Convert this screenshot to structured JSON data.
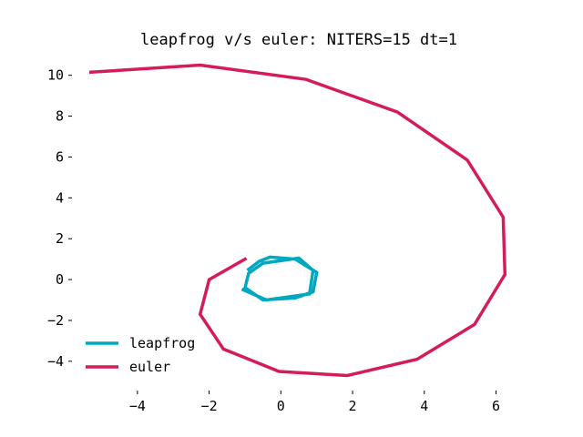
{
  "chart_data": {
    "type": "line",
    "title": "leapfrog v/s euler: NITERS=15 dt=1",
    "xlabel": "",
    "ylabel": "",
    "xlim": [
      -5.8,
      6.8
    ],
    "ylim": [
      -5.3,
      11.1
    ],
    "xticks": [
      -4,
      -2,
      0,
      2,
      4,
      6
    ],
    "yticks": [
      -4,
      -2,
      0,
      2,
      4,
      6,
      8,
      10
    ],
    "xtick_labels": [
      "−4",
      "−2",
      "0",
      "2",
      "4",
      "6"
    ],
    "ytick_labels": [
      "−4",
      "−2",
      "0",
      "2",
      "4",
      "6",
      "8",
      "10"
    ],
    "grid": false,
    "legend_position": "lower-left",
    "series": [
      {
        "name": "leapfrog",
        "color": "#00a8c0",
        "points": [
          [
            -0.9,
            0.5
          ],
          [
            -0.6,
            0.9
          ],
          [
            -0.3,
            1.1
          ],
          [
            0.4,
            1.0
          ],
          [
            1.0,
            0.35
          ],
          [
            0.9,
            -0.6
          ],
          [
            0.4,
            -0.9
          ],
          [
            -0.5,
            -1.0
          ],
          [
            -1.0,
            -0.4
          ],
          [
            -0.9,
            0.3
          ],
          [
            -0.5,
            0.8
          ],
          [
            0.5,
            1.05
          ],
          [
            0.9,
            0.45
          ],
          [
            0.8,
            -0.7
          ],
          [
            -0.4,
            -1.0
          ],
          [
            -1.05,
            -0.5
          ]
        ]
      },
      {
        "name": "euler",
        "color": "#d41c5c",
        "points": [
          [
            -1.0,
            1.0
          ],
          [
            -2.0,
            0.0
          ],
          [
            -2.25,
            -1.7
          ],
          [
            -1.6,
            -3.4
          ],
          [
            -0.05,
            -4.5
          ],
          [
            1.85,
            -4.7
          ],
          [
            3.8,
            -3.9
          ],
          [
            5.4,
            -2.2
          ],
          [
            6.25,
            0.25
          ],
          [
            6.2,
            3.05
          ],
          [
            5.2,
            5.85
          ],
          [
            3.25,
            8.2
          ],
          [
            0.7,
            9.8
          ],
          [
            -2.25,
            10.5
          ],
          [
            -5.3,
            10.15
          ]
        ]
      }
    ]
  }
}
